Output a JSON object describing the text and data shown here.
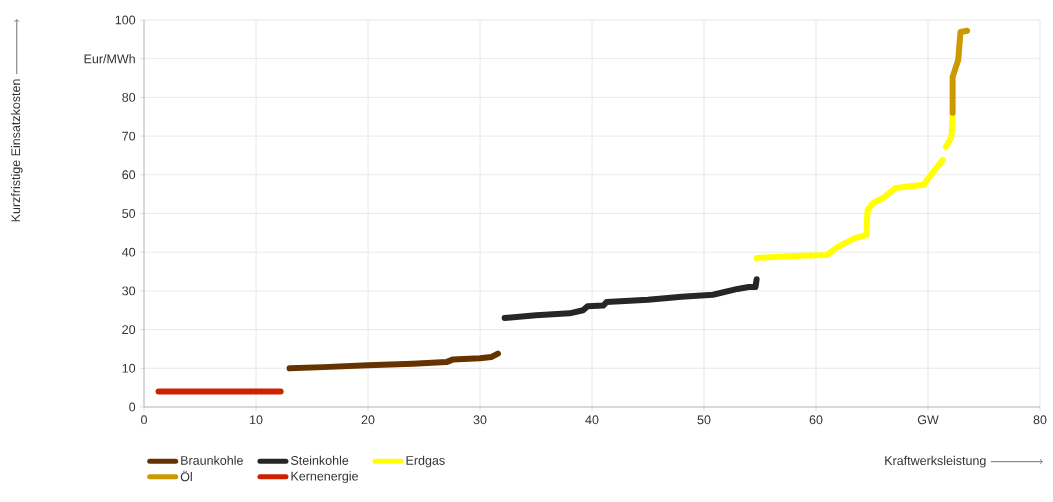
{
  "chart_data": {
    "type": "line",
    "xlabel": "Kraftwerksleistung",
    "ylabel": "Kurzfristige Einsatzkosten",
    "xlim": [
      0,
      80
    ],
    "ylim": [
      0,
      100
    ],
    "xticks": [
      0,
      10,
      20,
      30,
      40,
      50,
      60,
      {
        "value": 70,
        "label": "GW"
      },
      80
    ],
    "yticks": [
      0,
      10,
      20,
      30,
      40,
      50,
      60,
      70,
      80,
      {
        "value": 90,
        "label": "Eur/MWh"
      },
      100
    ],
    "grid": true,
    "legend": "bottom left",
    "line_style": "solid",
    "series": [
      {
        "name": "Braunkohle",
        "color": "#663300",
        "x": [
          13.0,
          16.0,
          20.0,
          24.0,
          27.0,
          27.6,
          30.0,
          31.0,
          31.6
        ],
        "values": [
          10.0,
          10.3,
          10.8,
          11.2,
          11.6,
          12.3,
          12.6,
          12.9,
          13.8
        ]
      },
      {
        "name": "Steinkohle",
        "color": "#262626",
        "x": [
          32.2,
          35.0,
          38.0,
          39.2,
          39.6,
          41.0,
          41.3,
          45.0,
          48.0,
          50.8,
          53.0,
          54.0,
          54.6,
          54.7
        ],
        "values": [
          23.0,
          23.7,
          24.2,
          25.0,
          26.0,
          26.2,
          27.1,
          27.7,
          28.5,
          29.0,
          30.5,
          31.0,
          31.0,
          33.0
        ]
      },
      {
        "name": "Erdgas",
        "color": "#ffff00",
        "x": [
          54.7,
          58.0,
          61.0,
          61.9,
          63.5,
          64.5,
          64.6,
          65.1,
          66.0,
          67.1,
          69.6,
          70.4,
          71.3,
          null,
          71.6,
          72.1,
          72.2
        ],
        "values": [
          38.5,
          39.0,
          39.3,
          41.3,
          43.7,
          44.4,
          50.9,
          52.7,
          54.0,
          56.6,
          57.4,
          60.5,
          63.8,
          null,
          67.2,
          69.8,
          75.5
        ]
      },
      {
        "name": "Öl",
        "color": "#cc9900",
        "x": [
          72.2,
          72.2,
          72.7,
          72.9,
          73.5
        ],
        "values": [
          76.0,
          85.3,
          89.7,
          96.9,
          97.2
        ]
      },
      {
        "name": "Kernenergie",
        "color": "#cc2200",
        "x": [
          1.3,
          12.2
        ],
        "values": [
          4.0,
          4.0
        ]
      }
    ]
  }
}
